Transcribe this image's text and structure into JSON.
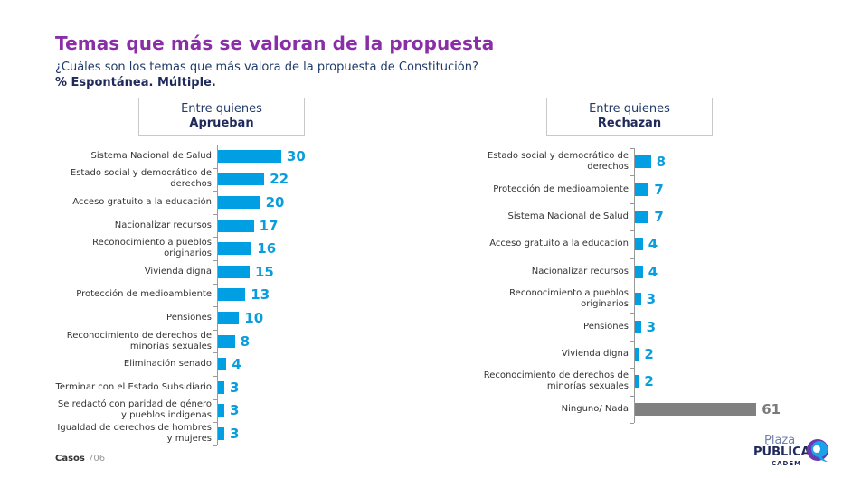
{
  "header": {
    "title": "Temas que más se valoran de la propuesta",
    "subtitle": "¿Cuáles son los temas que más valora de la propuesta de Constitución?",
    "note": "% Espontánea. Múltiple."
  },
  "footer": {
    "casos_label": "Casos",
    "casos_value": "706"
  },
  "logo": {
    "line1": "Plaza",
    "line2": "PÚBLICA",
    "line3": "CADEM"
  },
  "colors": {
    "title": "#8a2ea8",
    "bar_blue": "#009fe3",
    "bar_gray": "#808080"
  },
  "chart_data": [
    {
      "type": "bar",
      "orientation": "horizontal",
      "title": "Entre quienes Aprueban",
      "header_line1": "Entre quienes",
      "header_line2": "Aprueban",
      "xlabel": "",
      "ylabel": "",
      "xlim": [
        0,
        30
      ],
      "categories": [
        "Sistema Nacional de Salud",
        "Estado social y democrático de derechos",
        "Acceso gratuito a la educación",
        "Nacionalizar recursos",
        "Reconocimiento a pueblos originarios",
        "Vivienda digna",
        "Protección de medioambiente",
        "Pensiones",
        "Reconocimiento de derechos de minorías sexuales",
        "Eliminación senado",
        "Terminar con el Estado Subsidiario",
        "Se redactó con paridad de género y pueblos indigenas",
        "Igualdad de derechos de hombres y mujeres"
      ],
      "values": [
        30,
        22,
        20,
        17,
        16,
        15,
        13,
        10,
        8,
        4,
        3,
        3,
        3
      ],
      "bar_colors": [
        "#009fe3",
        "#009fe3",
        "#009fe3",
        "#009fe3",
        "#009fe3",
        "#009fe3",
        "#009fe3",
        "#009fe3",
        "#009fe3",
        "#009fe3",
        "#009fe3",
        "#009fe3",
        "#009fe3"
      ]
    },
    {
      "type": "bar",
      "orientation": "horizontal",
      "title": "Entre quienes Rechazan",
      "header_line1": "Entre quienes",
      "header_line2": "Rechazan",
      "xlabel": "",
      "ylabel": "",
      "xlim": [
        0,
        61
      ],
      "categories": [
        "Estado social y democrático de derechos",
        "Protección de medioambiente",
        "Sistema Nacional de Salud",
        "Acceso gratuito a la educación",
        "Nacionalizar recursos",
        "Reconocimiento a pueblos originarios",
        "Pensiones",
        "Vivienda digna",
        "Reconocimiento de derechos de minorías sexuales",
        "Ninguno/ Nada"
      ],
      "values": [
        8,
        7,
        7,
        4,
        4,
        3,
        3,
        2,
        2,
        61
      ],
      "bar_colors": [
        "#009fe3",
        "#009fe3",
        "#009fe3",
        "#009fe3",
        "#009fe3",
        "#009fe3",
        "#009fe3",
        "#009fe3",
        "#009fe3",
        "#808080"
      ]
    }
  ]
}
